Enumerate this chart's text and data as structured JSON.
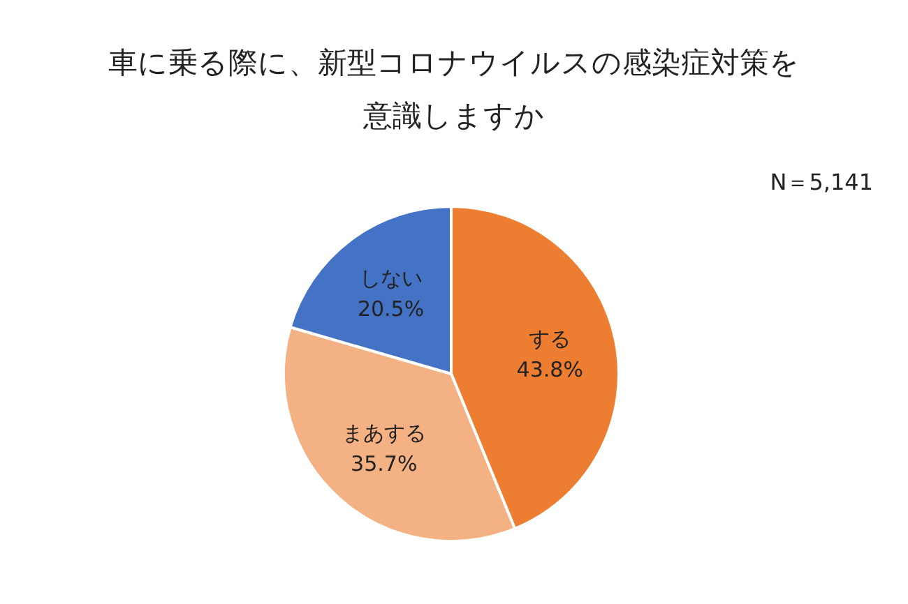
{
  "chart_data": {
    "type": "pie",
    "title": "車に乗る際に、新型コロナウイルスの感染症対策を意識しますか",
    "categories": [
      "する",
      "まあする",
      "しない"
    ],
    "values": [
      43.8,
      35.7,
      20.5
    ],
    "colors": [
      "#ed7d31",
      "#f4b183",
      "#4472c4"
    ],
    "value_labels": [
      "43.8%",
      "35.7%",
      "20.5%"
    ],
    "annotations": [
      "N＝5,141"
    ]
  }
}
